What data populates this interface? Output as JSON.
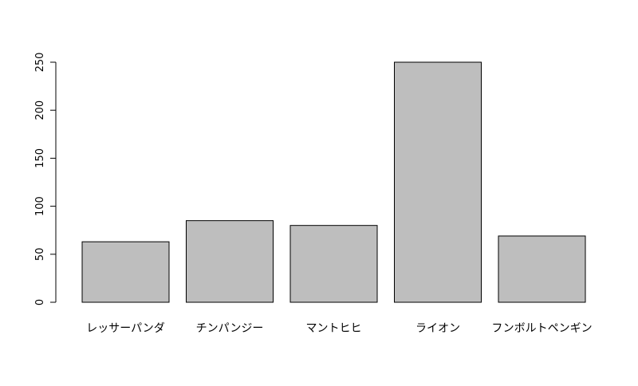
{
  "chart_data": {
    "type": "bar",
    "categories": [
      "レッサーパンダ",
      "チンパンジー",
      "マントヒヒ",
      "ライオン",
      "フンボルトペンギン"
    ],
    "values": [
      63,
      85,
      80,
      250,
      69
    ],
    "yticks": [
      0,
      50,
      100,
      150,
      200,
      250
    ],
    "ylim": [
      0,
      250
    ],
    "bar_fill": "#bebebe",
    "bar_stroke": "#000000",
    "axis_color": "#000000",
    "grid": false,
    "title": "",
    "xlabel": "",
    "ylabel": ""
  }
}
